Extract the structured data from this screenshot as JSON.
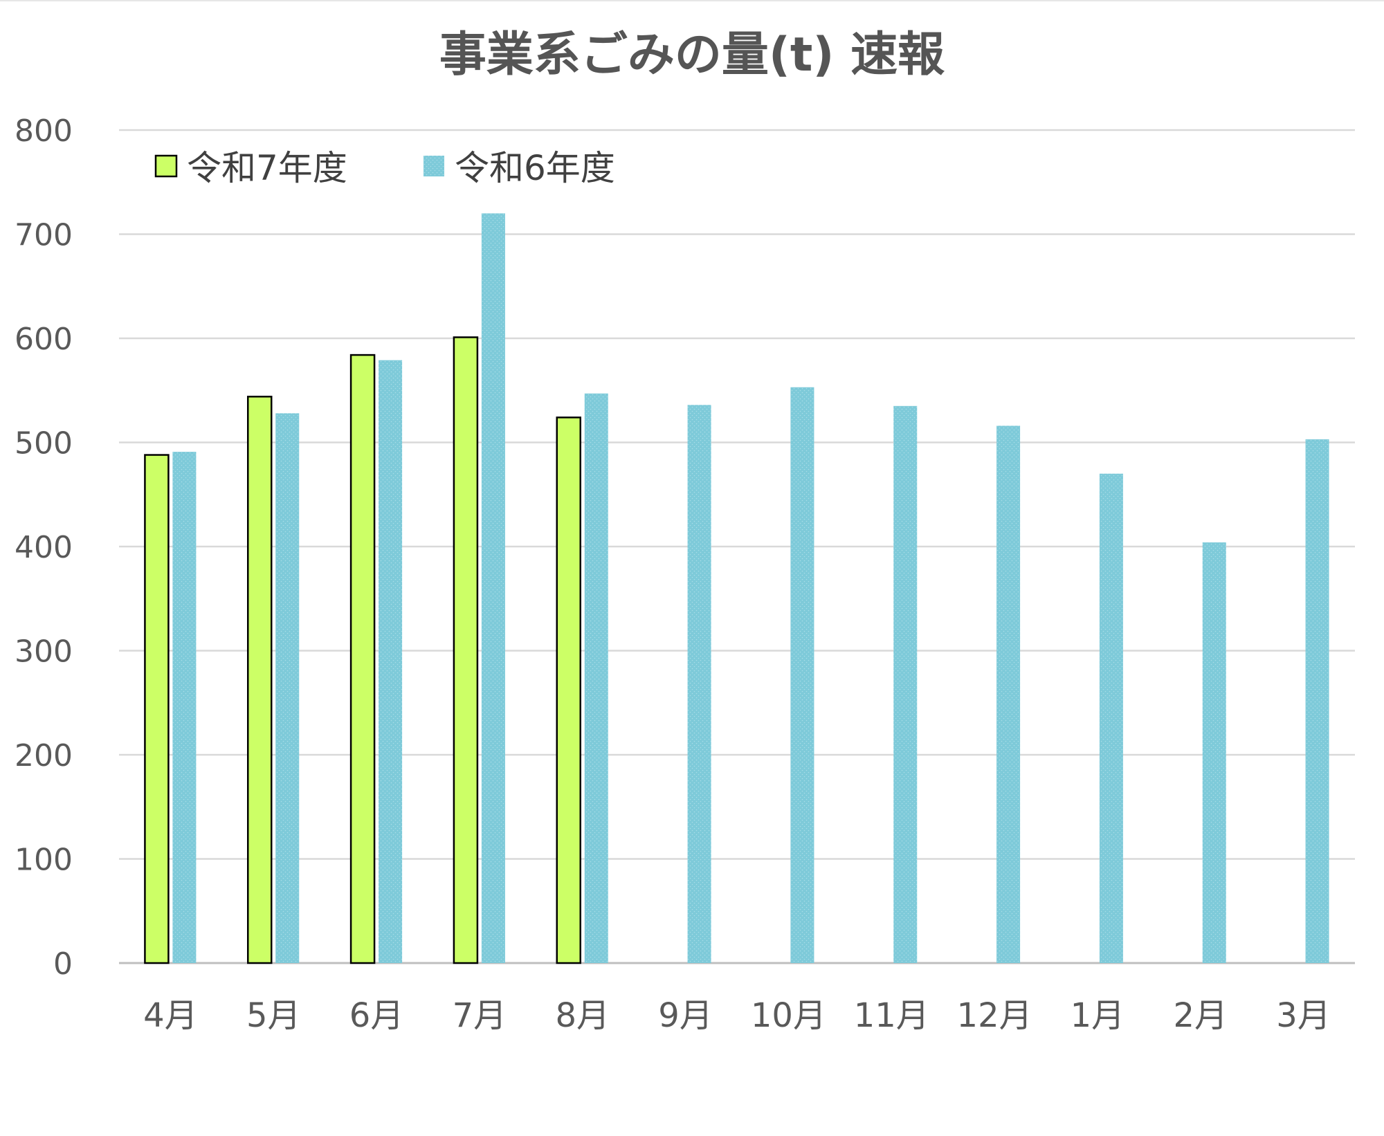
{
  "chart_data": {
    "type": "bar",
    "title": "事業系ごみの量(t) 速報",
    "xlabel": "",
    "ylabel": "",
    "ylim": [
      0,
      800
    ],
    "yticks": [
      0,
      100,
      200,
      300,
      400,
      500,
      600,
      700,
      800
    ],
    "grid": true,
    "legend_position": "top-left",
    "categories": [
      "4月",
      "5月",
      "6月",
      "7月",
      "8月",
      "9月",
      "10月",
      "11月",
      "12月",
      "1月",
      "2月",
      "3月"
    ],
    "series": [
      {
        "name": "令和7年度",
        "color": "#ccff66",
        "values": [
          488,
          544,
          584,
          601,
          524,
          null,
          null,
          null,
          null,
          null,
          null,
          null
        ]
      },
      {
        "name": "令和6年度",
        "color": "#7ecad9",
        "values": [
          491,
          528,
          579,
          720,
          547,
          536,
          553,
          535,
          516,
          470,
          404,
          503
        ]
      }
    ]
  }
}
